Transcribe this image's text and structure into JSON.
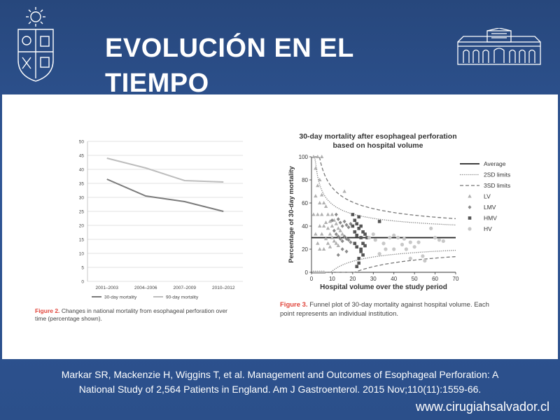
{
  "slide": {
    "title": "EVOLUCIÓN EN EL TIEMPO",
    "caption_line1": "Markar SR, Mackenzie H, Wiggins T, et al. Management and Outcomes of Esophageal Perforation: A",
    "caption_line2": "National Study of 2,564 Patients in England. Am J Gastroenterol. 2015 Nov;110(11):1559-66.",
    "website": "www.cirugiahsalvador.cl",
    "logo_left_icon": "university-crest-icon",
    "logo_right_icon": "hospital-building-icon",
    "colors": {
      "background": "#2b4f8a",
      "figure_label": "#e0443a"
    }
  },
  "figure2": {
    "label": "Figure 2.",
    "caption": "Changes in national mortality from esophageal perforation over",
    "caption_line2": "time (percentage shown)."
  },
  "figure3": {
    "label": "Figure 3.",
    "caption": "Funnel plot of 30-day mortality against hospital volume. Each",
    "caption_line2": "point represents an individual institution."
  },
  "chart_data": [
    {
      "type": "line",
      "categories": [
        "2001–2003",
        "2004–2006",
        "2007–2009",
        "2010–2012"
      ],
      "series": [
        {
          "name": "30-day mortality",
          "values": [
            36.5,
            30.5,
            28.5,
            25
          ],
          "color": "#7a7a7a"
        },
        {
          "name": "90-day mortality",
          "values": [
            44,
            40.5,
            36,
            35.5
          ],
          "color": "#bdbdbd"
        }
      ],
      "ylim": [
        0,
        50
      ],
      "yticks": [
        0,
        5,
        10,
        15,
        20,
        25,
        30,
        35,
        40,
        45,
        50
      ],
      "grid": true,
      "legend": "bottom"
    },
    {
      "type": "scatter",
      "title": "30-day mortality after esophageal perforation",
      "subtitle": "based on hospital volume",
      "xlabel": "Hospital volume over the study period",
      "ylabel": "Percentage of 30-day mortality",
      "xlim": [
        0,
        70
      ],
      "ylim": [
        0,
        100
      ],
      "xticks": [
        0,
        10,
        20,
        30,
        40,
        50,
        60,
        70
      ],
      "yticks": [
        0,
        20,
        40,
        60,
        80,
        100
      ],
      "average": 30,
      "legend": "right",
      "legend_entries": [
        {
          "label": "Average",
          "style": "solid"
        },
        {
          "label": "2SD limits",
          "style": "dotted"
        },
        {
          "label": "3SD limits",
          "style": "dashed"
        },
        {
          "label": "LV",
          "marker": "triangle"
        },
        {
          "label": "LMV",
          "marker": "diamond"
        },
        {
          "label": "HMV",
          "marker": "square"
        },
        {
          "label": "HV",
          "marker": "circle"
        }
      ],
      "series": [
        {
          "name": "LV",
          "marker": "triangle",
          "x": [
            1,
            1,
            2,
            2,
            2,
            3,
            3,
            3,
            3,
            4,
            4,
            4,
            4,
            5,
            5,
            5,
            5,
            6,
            6,
            6,
            6,
            7,
            7,
            7,
            8,
            8,
            8,
            9,
            9,
            9,
            10,
            10,
            10,
            11,
            11,
            12,
            12,
            13,
            13,
            14,
            15,
            16,
            3,
            5,
            1,
            2,
            4
          ],
          "y": [
            100,
            0,
            90,
            66,
            33,
            75,
            50,
            25,
            0,
            80,
            60,
            40,
            20,
            67,
            50,
            33,
            0,
            60,
            40,
            20,
            0,
            57,
            43,
            29,
            50,
            38,
            25,
            44,
            33,
            22,
            50,
            40,
            30,
            45,
            27,
            42,
            25,
            38,
            23,
            36,
            33,
            70,
            100,
            100,
            50,
            0,
            0
          ]
        },
        {
          "name": "LMV",
          "marker": "diamond",
          "x": [
            10,
            11,
            12,
            12,
            13,
            13,
            14,
            14,
            15,
            15,
            16,
            16,
            17,
            17,
            18,
            18,
            19,
            19,
            13,
            15,
            17
          ],
          "y": [
            45,
            36,
            50,
            33,
            46,
            31,
            43,
            29,
            40,
            27,
            44,
            31,
            41,
            29,
            39,
            28,
            42,
            26,
            15,
            20,
            18
          ]
        },
        {
          "name": "HMV",
          "marker": "square",
          "x": [
            20,
            20,
            21,
            21,
            21,
            22,
            22,
            22,
            23,
            23,
            23,
            24,
            24,
            24,
            25,
            25,
            25,
            26,
            26,
            27,
            22,
            23,
            24,
            33
          ],
          "y": [
            50,
            40,
            45,
            35,
            25,
            42,
            32,
            22,
            48,
            38,
            8,
            40,
            30,
            20,
            35,
            25,
            15,
            33,
            23,
            30,
            5,
            12,
            18,
            44
          ]
        },
        {
          "name": "HV",
          "marker": "circle",
          "x": [
            28,
            30,
            31,
            33,
            35,
            36,
            38,
            40,
            42,
            44,
            45,
            46,
            48,
            50,
            52,
            55,
            58,
            60,
            62,
            64,
            40,
            48,
            54
          ],
          "y": [
            30,
            33,
            28,
            16,
            25,
            20,
            30,
            32,
            30,
            24,
            29,
            20,
            26,
            22,
            26,
            10,
            38,
            30,
            28,
            27,
            20,
            12,
            14
          ]
        }
      ]
    }
  ]
}
